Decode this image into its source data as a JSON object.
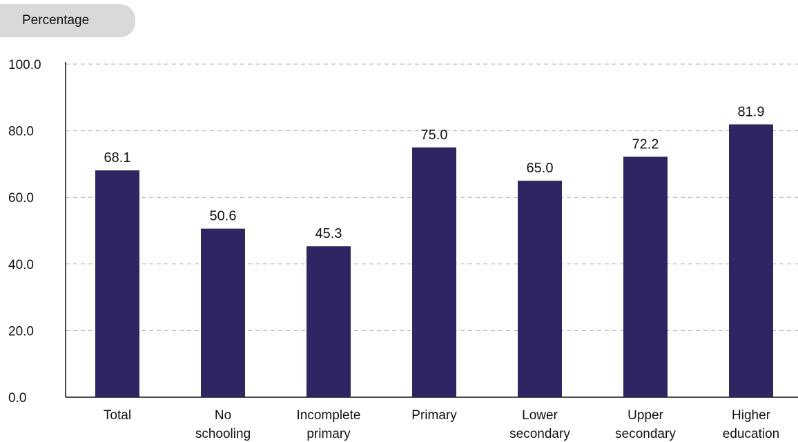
{
  "chart_data": {
    "type": "bar",
    "ylabel": "Percentage",
    "categories": [
      [
        "Total"
      ],
      [
        "No",
        "schooling"
      ],
      [
        "Incomplete",
        "primary"
      ],
      [
        "Primary"
      ],
      [
        "Lower",
        "secondary"
      ],
      [
        "Upper",
        "secondary"
      ],
      [
        "Higher",
        "education"
      ]
    ],
    "values": [
      68.1,
      50.6,
      45.3,
      75.0,
      65.0,
      72.2,
      81.9
    ],
    "value_labels": [
      "68.1",
      "50.6",
      "45.3",
      "75.0",
      "65.0",
      "72.2",
      "81.9"
    ],
    "ylim": [
      0,
      100
    ],
    "yticks": [
      "0.0",
      "20.0",
      "40.0",
      "60.0",
      "80.0",
      "100.0"
    ],
    "grid": true,
    "bar_color": "#2e2562"
  }
}
